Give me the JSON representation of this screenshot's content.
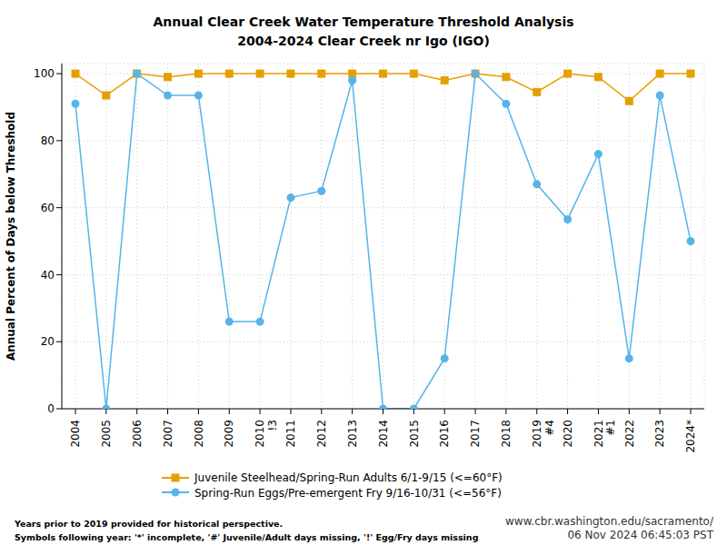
{
  "chart_data": {
    "type": "line",
    "title": "Annual Clear Creek Water Temperature Threshold Analysis",
    "subtitle": "2004-2024 Clear Creek nr Igo (IGO)",
    "y_label": "Annual Percent of Days below Threshold",
    "categories": [
      "2004",
      "2005",
      "2006",
      "2007",
      "2008",
      "2009",
      "2010\n!3",
      "2011",
      "2012",
      "2013",
      "2014",
      "2015",
      "2016",
      "2017",
      "2018",
      "2019\n#4",
      "2020",
      "2021\n#1",
      "2022",
      "2023",
      "2024*"
    ],
    "series": [
      {
        "name": "Juvenile Steelhead/Spring-Run Adults 6/1-9/15 (<=60°F)",
        "color": "#E69F00",
        "marker": "square",
        "values": [
          100,
          93.5,
          100,
          99,
          100,
          100,
          100,
          100,
          100,
          100,
          100,
          100,
          98,
          100,
          99,
          94.5,
          100,
          99,
          91.8,
          100,
          100
        ]
      },
      {
        "name": "Spring-Run Eggs/Pre-emergent Fry 9/16-10/31 (<=56°F)",
        "color": "#56B4E9",
        "marker": "circle",
        "values": [
          91,
          0,
          100,
          93.5,
          93.5,
          26,
          26,
          63,
          65,
          98,
          0,
          0,
          15,
          100,
          91,
          67,
          56.5,
          76,
          15,
          93.5,
          50
        ]
      }
    ],
    "ylim": [
      0,
      103
    ],
    "yticks": [
      0,
      20,
      40,
      60,
      80,
      100
    ],
    "grid": true,
    "notes": [
      "Years prior to 2019 provided for historical perspective.",
      "Symbols following year: '*' incomplete, '#' Juvenile/Adult days missing, '!' Egg/Fry days missing"
    ],
    "source": [
      "www.cbr.washington.edu/sacramento/",
      "06 Nov 2024 06:45:03 PST"
    ]
  }
}
